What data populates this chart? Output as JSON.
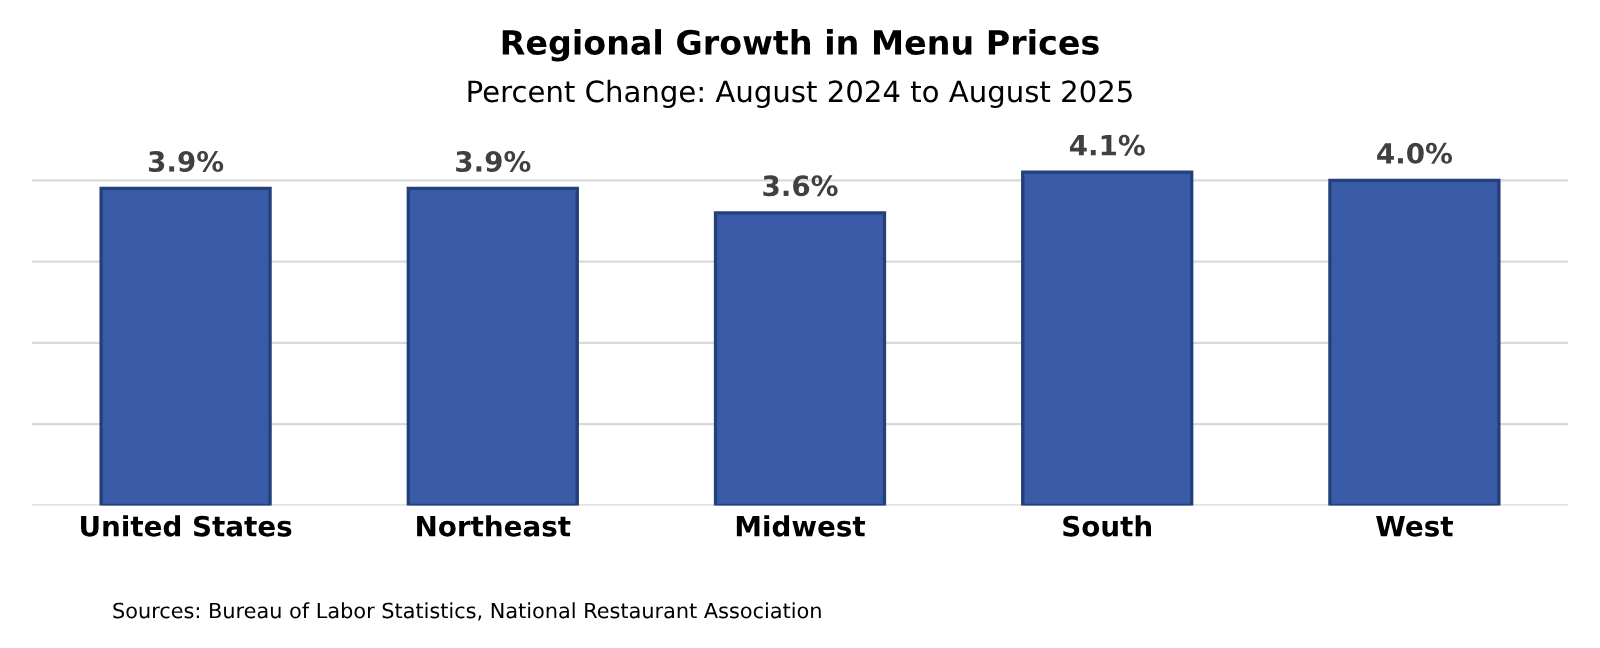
{
  "chart_data": {
    "type": "bar",
    "title": "Regional Growth in Menu Prices",
    "subtitle": "Percent Change: August 2024 to August 2025",
    "categories": [
      "United States",
      "Northeast",
      "Midwest",
      "South",
      "West"
    ],
    "values": [
      3.9,
      3.9,
      3.6,
      4.1,
      4.0
    ],
    "value_labels": [
      "3.9%",
      "3.9%",
      "3.6%",
      "4.1%",
      "4.0%"
    ],
    "color": "#3a5ca8",
    "yticks": [
      {
        "value": 0,
        "label": null
      },
      {
        "value": 1,
        "label": null
      },
      {
        "value": 2,
        "label": null
      },
      {
        "value": 3,
        "label": null
      },
      {
        "value": 4,
        "label": null
      }
    ],
    "grid": "y",
    "tick_labels": "x",
    "annotations": [
      "Sources: Bureau of Labor Statistics, National Restaurant Association"
    ]
  }
}
